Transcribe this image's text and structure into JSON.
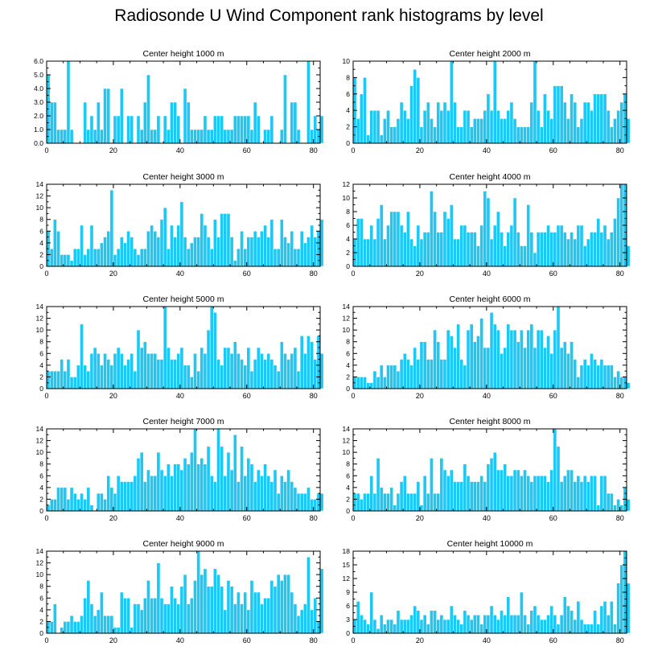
{
  "title": "Radiosonde U Wind Component rank histograms by level",
  "colors": {
    "bar": "#1ec8f5",
    "bar_edge": "#ffffff",
    "axis": "#000000"
  },
  "chart_data": [
    {
      "type": "bar",
      "title": "Center height 1000 m",
      "xlim": [
        0,
        82
      ],
      "ylim": [
        0,
        6
      ],
      "xticks": [
        0,
        20,
        40,
        60,
        80
      ],
      "yticks": [
        0,
        1,
        2,
        3,
        4,
        5,
        6
      ],
      "yticklabels": [
        "0.0",
        "1.0",
        "2.0",
        "3.0",
        "4.0",
        "5.0",
        "6.0"
      ],
      "values": [
        5,
        3,
        3,
        1,
        1,
        1,
        6,
        1,
        0,
        0,
        0,
        3,
        1,
        2,
        1,
        3,
        1,
        4,
        4,
        0,
        2,
        2,
        4,
        0,
        2,
        2,
        0,
        2,
        1,
        3,
        5,
        1,
        1,
        2,
        0,
        2,
        1,
        3,
        3,
        2,
        0,
        4,
        3,
        1,
        1,
        1,
        1,
        2,
        1,
        1,
        2,
        2,
        2,
        1,
        1,
        1,
        2,
        2,
        2,
        2,
        2,
        1,
        3,
        2,
        0,
        1,
        1,
        2,
        0,
        0,
        1,
        5,
        0,
        3,
        3,
        1,
        0,
        0,
        6,
        1,
        2,
        1,
        2
      ]
    },
    {
      "type": "bar",
      "title": "Center height 2000 m",
      "xlim": [
        0,
        82
      ],
      "ylim": [
        0,
        10
      ],
      "xticks": [
        0,
        20,
        40,
        60,
        80
      ],
      "yticks": [
        0,
        2,
        4,
        6,
        8,
        10
      ],
      "yticklabels": [
        "0",
        "2",
        "4",
        "6",
        "8",
        "10"
      ],
      "values": [
        8,
        3,
        6,
        8,
        1,
        4,
        4,
        4,
        1,
        3,
        4,
        2,
        2,
        3,
        5,
        4,
        3,
        7,
        9,
        8,
        2,
        4,
        5,
        3,
        2,
        5,
        4,
        5,
        4,
        10,
        5,
        2,
        2,
        4,
        4,
        2,
        3,
        3,
        3,
        4,
        6,
        4,
        10,
        4,
        3,
        3,
        4,
        5,
        3,
        2,
        2,
        2,
        2,
        5,
        10,
        4,
        2,
        6,
        4,
        3,
        7,
        7,
        7,
        5,
        3,
        6,
        5,
        2,
        3,
        5,
        5,
        4,
        6,
        6,
        6,
        6,
        4,
        2,
        3,
        4,
        5,
        6,
        3
      ]
    },
    {
      "type": "bar",
      "title": "Center height 3000 m",
      "xlim": [
        0,
        82
      ],
      "ylim": [
        0,
        14
      ],
      "xticks": [
        0,
        20,
        40,
        60,
        80
      ],
      "yticks": [
        0,
        2,
        4,
        6,
        8,
        10,
        12,
        14
      ],
      "yticklabels": [
        "0",
        "2",
        "4",
        "6",
        "8",
        "10",
        "12",
        "14"
      ],
      "values": [
        6,
        3,
        8,
        6,
        2,
        2,
        2,
        1,
        3,
        3,
        7,
        2,
        3,
        7,
        3,
        3,
        4,
        5,
        6,
        13,
        2,
        3,
        5,
        4,
        6,
        5,
        3,
        2,
        3,
        3,
        6,
        7,
        6,
        5,
        8,
        10,
        3,
        7,
        5,
        7,
        11,
        5,
        3,
        4,
        5,
        5,
        9,
        7,
        5,
        3,
        8,
        5,
        9,
        9,
        9,
        5,
        1,
        3,
        6,
        3,
        5,
        5,
        6,
        5,
        6,
        7,
        5,
        8,
        3,
        3,
        8,
        5,
        4,
        6,
        3,
        3,
        6,
        4,
        5,
        7,
        5,
        6,
        8
      ]
    },
    {
      "type": "bar",
      "title": "Center height 4000 m",
      "xlim": [
        0,
        82
      ],
      "ylim": [
        0,
        12
      ],
      "xticks": [
        0,
        20,
        40,
        60,
        80
      ],
      "yticks": [
        0,
        2,
        4,
        6,
        8,
        10,
        12
      ],
      "yticklabels": [
        "0",
        "2",
        "4",
        "6",
        "8",
        "10",
        "12"
      ],
      "values": [
        4,
        7,
        7,
        4,
        4,
        6,
        4,
        7,
        9,
        4,
        6,
        8,
        8,
        8,
        6,
        5,
        8,
        4,
        3,
        6,
        4,
        5,
        5,
        11,
        8,
        5,
        5,
        8,
        7,
        9,
        4,
        4,
        6,
        6,
        5,
        5,
        5,
        3,
        6,
        11,
        10,
        4,
        6,
        8,
        5,
        3,
        5,
        6,
        10,
        5,
        3,
        3,
        9,
        5,
        2,
        5,
        5,
        5,
        6,
        5,
        5,
        6,
        6,
        5,
        4,
        5,
        4,
        6,
        6,
        3,
        4,
        5,
        5,
        7,
        5,
        6,
        4,
        5,
        7,
        10,
        12,
        12,
        3
      ]
    },
    {
      "type": "bar",
      "title": "Center height 5000 m",
      "xlim": [
        0,
        82
      ],
      "ylim": [
        0,
        14
      ],
      "xticks": [
        0,
        20,
        40,
        60,
        80
      ],
      "yticks": [
        0,
        2,
        4,
        6,
        8,
        10,
        12,
        14
      ],
      "yticklabels": [
        "0",
        "2",
        "4",
        "6",
        "8",
        "10",
        "12",
        "14"
      ],
      "values": [
        3,
        3,
        3,
        3,
        5,
        3,
        5,
        2,
        2,
        4,
        11,
        4,
        3,
        6,
        7,
        6,
        4,
        6,
        5,
        4,
        6,
        7,
        6,
        4,
        5,
        6,
        3,
        10,
        7,
        8,
        6,
        6,
        6,
        5,
        5,
        14,
        7,
        5,
        5,
        6,
        7,
        4,
        4,
        2,
        6,
        3,
        7,
        6,
        10,
        14,
        13,
        5,
        4,
        7,
        7,
        6,
        8,
        6,
        5,
        4,
        7,
        3,
        5,
        7,
        6,
        5,
        6,
        5,
        4,
        3,
        8,
        6,
        5,
        6,
        7,
        3,
        9,
        6,
        9,
        8,
        5,
        9,
        6
      ]
    },
    {
      "type": "bar",
      "title": "Center height 6000 m",
      "xlim": [
        0,
        82
      ],
      "ylim": [
        0,
        14
      ],
      "xticks": [
        0,
        20,
        40,
        60,
        80
      ],
      "yticks": [
        0,
        2,
        4,
        6,
        8,
        10,
        12,
        14
      ],
      "yticklabels": [
        "0",
        "2",
        "4",
        "6",
        "8",
        "10",
        "12",
        "14"
      ],
      "values": [
        2,
        2,
        2,
        2,
        1,
        1,
        3,
        2,
        4,
        2,
        4,
        4,
        4,
        3,
        5,
        6,
        5,
        4,
        7,
        5,
        8,
        8,
        5,
        5,
        10,
        8,
        5,
        5,
        10,
        9,
        7,
        11,
        5,
        4,
        10,
        11,
        8,
        9,
        12,
        7,
        7,
        13,
        11,
        10,
        6,
        7,
        11,
        10,
        10,
        8,
        10,
        7,
        10,
        11,
        7,
        10,
        10,
        7,
        9,
        6,
        10,
        14,
        7,
        8,
        6,
        8,
        5,
        2,
        4,
        5,
        4,
        6,
        5,
        4,
        5,
        4,
        4,
        4,
        2,
        3,
        2,
        2,
        1
      ]
    },
    {
      "type": "bar",
      "title": "Center height 7000 m",
      "xlim": [
        0,
        82
      ],
      "ylim": [
        0,
        14
      ],
      "xticks": [
        0,
        20,
        40,
        60,
        80
      ],
      "yticks": [
        0,
        2,
        4,
        6,
        8,
        10,
        12,
        14
      ],
      "yticklabels": [
        "0",
        "2",
        "4",
        "6",
        "8",
        "10",
        "12",
        "14"
      ],
      "values": [
        1,
        2,
        2,
        4,
        4,
        4,
        2,
        4,
        3,
        2,
        3,
        2,
        4,
        1,
        0,
        3,
        3,
        2,
        6,
        4,
        3,
        6,
        5,
        5,
        5,
        5,
        6,
        9,
        10,
        5,
        7,
        6,
        6,
        10,
        7,
        6,
        8,
        6,
        8,
        8,
        7,
        9,
        8,
        10,
        14,
        8,
        9,
        8,
        11,
        6,
        5,
        14,
        11,
        6,
        10,
        7,
        13,
        5,
        11,
        6,
        9,
        8,
        5,
        7,
        6,
        8,
        6,
        5,
        7,
        3,
        6,
        5,
        7,
        5,
        4,
        3,
        3,
        3,
        4,
        2,
        2,
        3,
        3
      ]
    },
    {
      "type": "bar",
      "title": "Center height 8000 m",
      "xlim": [
        0,
        82
      ],
      "ylim": [
        0,
        14
      ],
      "xticks": [
        0,
        20,
        40,
        60,
        80
      ],
      "yticks": [
        0,
        2,
        4,
        6,
        8,
        10,
        12,
        14
      ],
      "yticklabels": [
        "0",
        "2",
        "4",
        "6",
        "8",
        "10",
        "12",
        "14"
      ],
      "values": [
        3,
        3,
        2,
        3,
        3,
        6,
        3,
        9,
        4,
        3,
        3,
        4,
        1,
        3,
        5,
        6,
        3,
        3,
        3,
        5,
        1,
        6,
        3,
        9,
        3,
        3,
        9,
        7,
        6,
        7,
        5,
        5,
        5,
        8,
        6,
        5,
        5,
        5,
        6,
        5,
        8,
        9,
        10,
        7,
        7,
        8,
        6,
        6,
        7,
        7,
        6,
        7,
        6,
        5,
        6,
        6,
        6,
        6,
        5,
        7,
        14,
        11,
        5,
        6,
        7,
        7,
        5,
        6,
        5,
        6,
        5,
        6,
        6,
        1,
        6,
        6,
        3,
        3,
        1,
        2,
        1,
        4,
        2
      ]
    },
    {
      "type": "bar",
      "title": "Center height 9000 m",
      "xlim": [
        0,
        82
      ],
      "ylim": [
        0,
        14
      ],
      "xticks": [
        0,
        20,
        40,
        60,
        80
      ],
      "yticks": [
        0,
        2,
        4,
        6,
        8,
        10,
        12,
        14
      ],
      "yticklabels": [
        "0",
        "2",
        "4",
        "6",
        "8",
        "10",
        "12",
        "14"
      ],
      "values": [
        2,
        2,
        5,
        0,
        1,
        2,
        2,
        3,
        2,
        2,
        3,
        6,
        9,
        5,
        3,
        4,
        7,
        3,
        3,
        3,
        1,
        1,
        7,
        6,
        6,
        1,
        5,
        5,
        4,
        6,
        9,
        6,
        6,
        12,
        6,
        5,
        5,
        8,
        6,
        5,
        8,
        10,
        5,
        6,
        9,
        14,
        10,
        11,
        8,
        8,
        11,
        10,
        8,
        4,
        9,
        8,
        5,
        7,
        5,
        7,
        4,
        9,
        7,
        7,
        5,
        6,
        6,
        9,
        8,
        10,
        9,
        10,
        10,
        7,
        5,
        3,
        4,
        5,
        13,
        4,
        6,
        2,
        11
      ]
    },
    {
      "type": "bar",
      "title": "Center height 10000 m",
      "xlim": [
        0,
        82
      ],
      "ylim": [
        0,
        18
      ],
      "xticks": [
        0,
        20,
        40,
        60,
        80
      ],
      "yticks": [
        0,
        3,
        6,
        9,
        12,
        15,
        18
      ],
      "yticklabels": [
        "0",
        "3",
        "6",
        "9",
        "12",
        "15",
        "18"
      ],
      "values": [
        3,
        7,
        4,
        3,
        2,
        9,
        3,
        1,
        4,
        2,
        3,
        3,
        2,
        5,
        3,
        3,
        3,
        4,
        6,
        5,
        3,
        4,
        2,
        5,
        5,
        3,
        4,
        3,
        3,
        6,
        4,
        3,
        2,
        5,
        4,
        3,
        4,
        4,
        2,
        4,
        4,
        6,
        4,
        3,
        5,
        4,
        8,
        4,
        4,
        4,
        9,
        4,
        2,
        5,
        6,
        4,
        3,
        3,
        4,
        6,
        4,
        2,
        4,
        8,
        6,
        5,
        3,
        7,
        3,
        2,
        2,
        2,
        5,
        2,
        6,
        7,
        4,
        7,
        2,
        11,
        15,
        18,
        11
      ]
    }
  ]
}
